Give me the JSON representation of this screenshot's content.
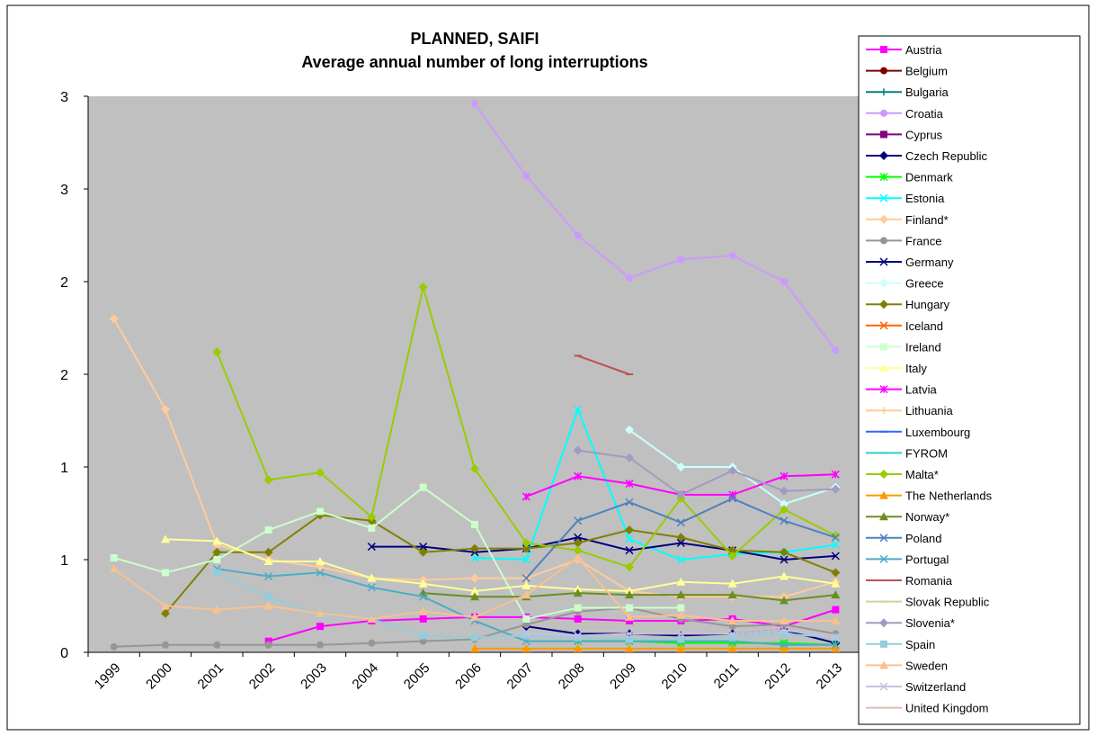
{
  "chart_data": {
    "type": "line",
    "title": "PLANNED, SAIFI",
    "subtitle": "Average annual number of long interruptions",
    "categories": [
      "1999",
      "2000",
      "2001",
      "2002",
      "2003",
      "2004",
      "2005",
      "2006",
      "2007",
      "2008",
      "2009",
      "2010",
      "2011",
      "2012",
      "2013"
    ],
    "ylim": [
      0,
      3
    ],
    "yticks": [
      0,
      {
        "value": 0.5,
        "label": "1"
      },
      1,
      {
        "value": 1.5,
        "label": "2"
      },
      2,
      {
        "value": 2.5,
        "label": "3"
      },
      3
    ],
    "grid": false,
    "legend": "right",
    "series": [
      {
        "name": "Austria",
        "color": "#ff00ff",
        "marker": "square",
        "values": [
          null,
          null,
          null,
          0.06,
          0.14,
          0.17,
          0.18,
          0.19,
          0.19,
          0.18,
          0.17,
          0.17,
          0.18,
          0.14,
          0.23
        ]
      },
      {
        "name": "Belgium",
        "color": "#800000",
        "marker": "circle",
        "values": [
          null,
          null,
          null,
          null,
          null,
          null,
          null,
          null,
          null,
          null,
          null,
          null,
          null,
          null,
          null
        ]
      },
      {
        "name": "Bulgaria",
        "color": "#008080",
        "marker": "plus",
        "values": [
          null,
          null,
          null,
          null,
          null,
          null,
          null,
          null,
          null,
          null,
          null,
          null,
          null,
          null,
          null
        ]
      },
      {
        "name": "Croatia",
        "color": "#cc99ff",
        "marker": "circle",
        "values": [
          null,
          null,
          null,
          null,
          null,
          null,
          null,
          2.96,
          2.57,
          2.25,
          2.02,
          2.12,
          2.14,
          2.0,
          1.63
        ]
      },
      {
        "name": "Cyprus",
        "color": "#800080",
        "marker": "square",
        "values": [
          null,
          null,
          null,
          null,
          null,
          null,
          null,
          null,
          null,
          null,
          null,
          null,
          null,
          null,
          null
        ]
      },
      {
        "name": "Czech Republic",
        "color": "#000080",
        "marker": "diamond",
        "values": [
          null,
          null,
          null,
          null,
          null,
          null,
          null,
          null,
          0.14,
          0.1,
          0.1,
          0.09,
          0.1,
          0.12,
          0.05
        ]
      },
      {
        "name": "Denmark",
        "color": "#00ff00",
        "marker": "star",
        "values": [
          null,
          null,
          null,
          null,
          null,
          null,
          null,
          null,
          null,
          0.06,
          0.06,
          0.05,
          0.05,
          0.05,
          0.04
        ]
      },
      {
        "name": "Estonia",
        "color": "#00ffff",
        "marker": "x",
        "values": [
          null,
          null,
          null,
          null,
          null,
          null,
          null,
          0.51,
          0.5,
          1.31,
          0.61,
          0.5,
          0.53,
          0.54,
          0.58
        ]
      },
      {
        "name": "Finland*",
        "color": "#ffcc99",
        "marker": "diamond",
        "values": [
          1.8,
          1.31,
          0.58,
          0.5,
          0.46,
          0.4,
          0.39,
          0.4,
          0.4,
          0.5,
          0.33,
          0.3,
          0.3,
          0.3,
          0.38
        ]
      },
      {
        "name": "France",
        "color": "#969696",
        "marker": "circle",
        "values": [
          0.03,
          0.04,
          0.04,
          0.04,
          0.04,
          0.05,
          0.06,
          0.07,
          0.15,
          0.22,
          0.24,
          0.18,
          0.14,
          0.15,
          0.1
        ]
      },
      {
        "name": "Germany",
        "color": "#000080",
        "marker": "x",
        "values": [
          null,
          null,
          null,
          null,
          null,
          0.57,
          0.57,
          0.54,
          0.56,
          0.62,
          0.55,
          0.59,
          0.55,
          0.5,
          0.52
        ]
      },
      {
        "name": "Greece",
        "color": "#ccffff",
        "marker": "diamond",
        "values": [
          null,
          null,
          null,
          null,
          null,
          null,
          null,
          null,
          null,
          null,
          1.2,
          1.0,
          1.0,
          0.8,
          0.89
        ]
      },
      {
        "name": "Hungary",
        "color": "#808000",
        "marker": "diamond",
        "values": [
          null,
          0.21,
          0.54,
          0.54,
          0.74,
          0.71,
          0.54,
          0.56,
          0.56,
          0.59,
          0.66,
          0.62,
          0.55,
          0.54,
          0.43
        ]
      },
      {
        "name": "Iceland",
        "color": "#ff6600",
        "marker": "x",
        "values": [
          null,
          null,
          null,
          null,
          null,
          null,
          null,
          null,
          null,
          null,
          null,
          null,
          null,
          null,
          null
        ]
      },
      {
        "name": "Ireland",
        "color": "#ccffcc",
        "marker": "square",
        "values": [
          0.51,
          0.43,
          0.5,
          0.66,
          0.76,
          0.67,
          0.89,
          0.69,
          0.18,
          0.24,
          0.24,
          0.24,
          null,
          null,
          null
        ]
      },
      {
        "name": "Italy",
        "color": "#ffff99",
        "marker": "triangle",
        "values": [
          null,
          0.61,
          0.6,
          0.49,
          0.49,
          0.4,
          0.37,
          0.33,
          0.36,
          0.34,
          0.33,
          0.38,
          0.37,
          0.41,
          0.37
        ]
      },
      {
        "name": "Latvia",
        "color": "#ff00ff",
        "marker": "star",
        "values": [
          null,
          null,
          null,
          null,
          null,
          null,
          null,
          null,
          0.84,
          0.95,
          0.91,
          0.85,
          0.85,
          0.95,
          0.96
        ]
      },
      {
        "name": "Lithuania",
        "color": "#ffcc99",
        "marker": "plus",
        "values": [
          null,
          null,
          null,
          null,
          null,
          null,
          null,
          null,
          null,
          null,
          null,
          null,
          null,
          null,
          null
        ]
      },
      {
        "name": "Luxembourg",
        "color": "#3366ff",
        "marker": "dash",
        "values": [
          null,
          null,
          null,
          null,
          null,
          null,
          null,
          null,
          null,
          null,
          null,
          null,
          null,
          null,
          null
        ]
      },
      {
        "name": "FYROM",
        "color": "#33cccc",
        "marker": "dash",
        "values": [
          null,
          null,
          null,
          null,
          null,
          null,
          null,
          null,
          null,
          null,
          null,
          null,
          null,
          null,
          null
        ]
      },
      {
        "name": "Malta*",
        "color": "#99cc00",
        "marker": "diamond",
        "values": [
          null,
          null,
          1.62,
          0.93,
          0.97,
          0.73,
          1.97,
          0.99,
          0.59,
          0.55,
          0.46,
          0.83,
          0.52,
          0.77,
          0.63
        ]
      },
      {
        "name": "The Netherlands",
        "color": "#ff9900",
        "marker": "triangle",
        "values": [
          null,
          null,
          null,
          null,
          null,
          null,
          null,
          0.02,
          0.02,
          0.02,
          0.02,
          0.02,
          0.02,
          0.02,
          0.02
        ]
      },
      {
        "name": "Norway*",
        "color": "#6b8e23",
        "marker": "triangle",
        "values": [
          null,
          null,
          null,
          null,
          null,
          null,
          0.32,
          0.3,
          0.3,
          0.32,
          0.31,
          0.31,
          0.31,
          0.28,
          0.31
        ]
      },
      {
        "name": "Poland",
        "color": "#4f81bd",
        "marker": "x",
        "values": [
          null,
          null,
          null,
          null,
          null,
          null,
          null,
          null,
          0.4,
          0.71,
          0.81,
          0.7,
          0.83,
          0.71,
          0.62
        ]
      },
      {
        "name": "Portugal",
        "color": "#4bacc6",
        "marker": "x",
        "values": [
          null,
          null,
          0.45,
          0.41,
          0.43,
          0.35,
          0.3,
          0.17,
          0.06,
          0.06,
          0.06,
          0.06,
          0.06,
          0.04,
          0.04
        ]
      },
      {
        "name": "Romania",
        "color": "#c0504d",
        "marker": "dash",
        "values": [
          null,
          null,
          null,
          null,
          null,
          null,
          null,
          null,
          null,
          1.6,
          1.5,
          null,
          null,
          null,
          null
        ]
      },
      {
        "name": "Slovak Republic",
        "color": "#c4d79b",
        "marker": "dash",
        "values": [
          null,
          null,
          null,
          null,
          null,
          null,
          null,
          null,
          null,
          null,
          null,
          null,
          null,
          null,
          null
        ]
      },
      {
        "name": "Slovenia*",
        "color": "#a29ac0",
        "marker": "diamond",
        "values": [
          null,
          null,
          null,
          null,
          null,
          null,
          null,
          null,
          null,
          1.09,
          1.05,
          0.85,
          0.98,
          0.87,
          0.88
        ]
      },
      {
        "name": "Spain",
        "color": "#93cddd",
        "marker": "square",
        "values": [
          null,
          null,
          0.43,
          0.3,
          0.2,
          0.18,
          0.09,
          0.08,
          0.09,
          0.08,
          0.07,
          0.07,
          0.08,
          0.1,
          0.08
        ]
      },
      {
        "name": "Sweden",
        "color": "#fac090",
        "marker": "triangle",
        "values": [
          0.45,
          0.25,
          0.23,
          0.25,
          0.21,
          0.18,
          0.22,
          0.19,
          0.31,
          0.51,
          0.19,
          0.2,
          0.17,
          0.17,
          0.17
        ]
      },
      {
        "name": "Switzerland",
        "color": "#c5c0e0",
        "marker": "x",
        "values": [
          null,
          null,
          null,
          null,
          null,
          null,
          null,
          null,
          0.1,
          0.09,
          0.1,
          0.1,
          0.1,
          0.12,
          0.08
        ]
      },
      {
        "name": "United Kingdom",
        "color": "#e6b9b8",
        "marker": "dash",
        "values": [
          null,
          null,
          null,
          null,
          null,
          null,
          null,
          null,
          null,
          null,
          null,
          null,
          null,
          null,
          null
        ]
      }
    ]
  }
}
